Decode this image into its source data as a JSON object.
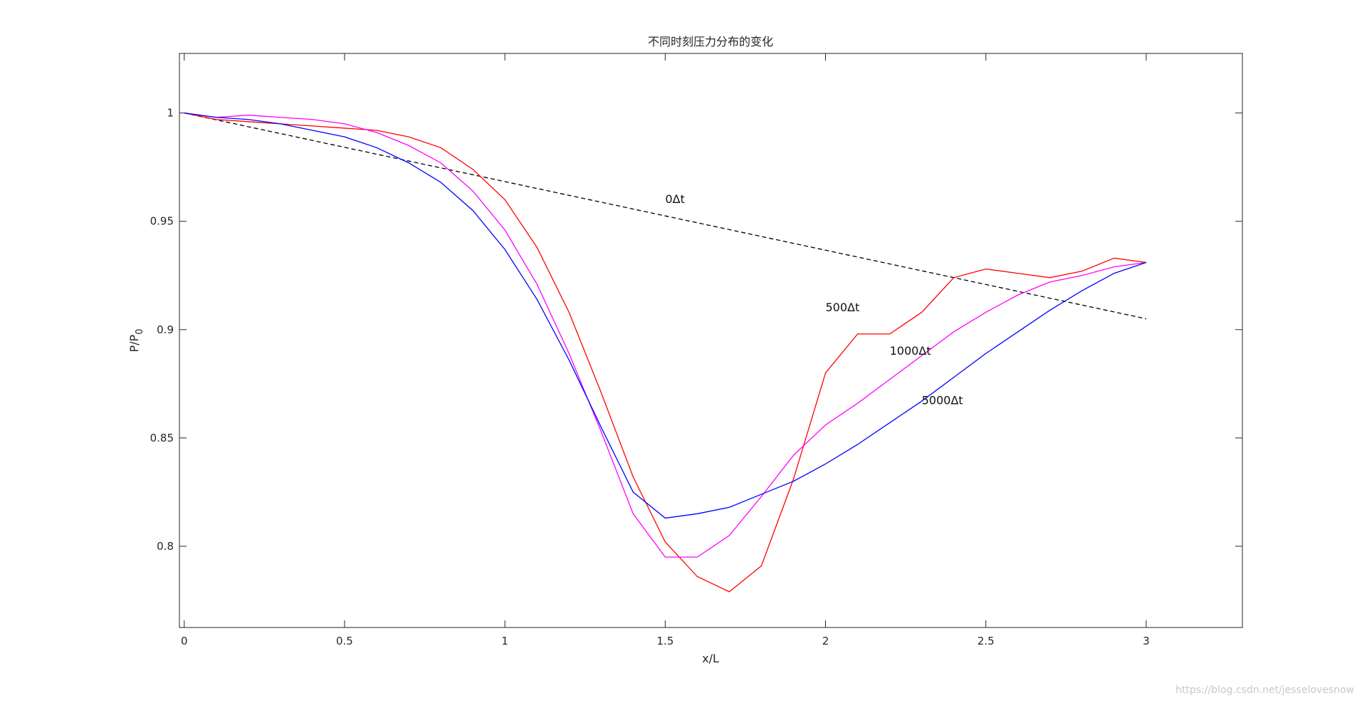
{
  "chart_data": {
    "type": "line",
    "title": "不同时刻压力分布的变化",
    "xlabel": "x/L",
    "ylabel": "P/P",
    "ylabel_subscript": "0",
    "xlim": [
      -0.015,
      3.3
    ],
    "ylim": [
      0.7625,
      1.0275
    ],
    "x_ticks": [
      0,
      0.5,
      1,
      1.5,
      2,
      2.5,
      3
    ],
    "x_tick_labels": [
      "0",
      "0.5",
      "1",
      "1.5",
      "2",
      "2.5",
      "3"
    ],
    "y_ticks": [
      0.8,
      0.85,
      0.9,
      0.95,
      1
    ],
    "y_tick_labels": [
      "0.8",
      "0.85",
      "0.9",
      "0.95",
      "1"
    ],
    "grid": false,
    "series": [
      {
        "id": "t0",
        "color": "#000000",
        "dashed": true,
        "x": [
          0,
          3
        ],
        "y": [
          1.0,
          0.905
        ]
      },
      {
        "id": "t500",
        "color": "#ff0000",
        "dashed": false,
        "x": [
          0,
          0.1,
          0.2,
          0.3,
          0.4,
          0.5,
          0.6,
          0.7,
          0.8,
          0.9,
          1.0,
          1.1,
          1.2,
          1.3,
          1.4,
          1.5,
          1.6,
          1.7,
          1.8,
          1.9,
          2.0,
          2.1,
          2.2,
          2.3,
          2.4,
          2.5,
          2.6,
          2.7,
          2.8,
          2.9,
          3.0
        ],
        "y": [
          1.0,
          0.997,
          0.996,
          0.995,
          0.994,
          0.993,
          0.992,
          0.989,
          0.984,
          0.974,
          0.96,
          0.938,
          0.908,
          0.871,
          0.832,
          0.802,
          0.786,
          0.779,
          0.791,
          0.831,
          0.88,
          0.898,
          0.898,
          0.908,
          0.924,
          0.928,
          0.926,
          0.924,
          0.927,
          0.933,
          0.931
        ]
      },
      {
        "id": "t1000",
        "color": "#ff00ff",
        "dashed": false,
        "x": [
          0,
          0.1,
          0.2,
          0.3,
          0.4,
          0.5,
          0.6,
          0.7,
          0.8,
          0.9,
          1.0,
          1.1,
          1.2,
          1.3,
          1.4,
          1.5,
          1.6,
          1.7,
          1.8,
          1.9,
          2.0,
          2.1,
          2.2,
          2.3,
          2.4,
          2.5,
          2.6,
          2.7,
          2.8,
          2.9,
          3.0
        ],
        "y": [
          1.0,
          0.998,
          0.999,
          0.998,
          0.997,
          0.995,
          0.991,
          0.985,
          0.977,
          0.964,
          0.946,
          0.921,
          0.889,
          0.853,
          0.815,
          0.795,
          0.795,
          0.805,
          0.823,
          0.842,
          0.856,
          0.866,
          0.877,
          0.888,
          0.899,
          0.908,
          0.916,
          0.922,
          0.925,
          0.929,
          0.931
        ]
      },
      {
        "id": "t5000",
        "color": "#0000ff",
        "dashed": false,
        "x": [
          0,
          0.1,
          0.2,
          0.3,
          0.4,
          0.5,
          0.6,
          0.7,
          0.8,
          0.9,
          1.0,
          1.1,
          1.2,
          1.3,
          1.4,
          1.5,
          1.6,
          1.7,
          1.8,
          1.9,
          2.0,
          2.1,
          2.2,
          2.3,
          2.4,
          2.5,
          2.6,
          2.7,
          2.8,
          2.9,
          3.0
        ],
        "y": [
          1.0,
          0.998,
          0.997,
          0.995,
          0.992,
          0.989,
          0.984,
          0.977,
          0.968,
          0.955,
          0.937,
          0.914,
          0.886,
          0.855,
          0.825,
          0.813,
          0.815,
          0.818,
          0.824,
          0.83,
          0.838,
          0.847,
          0.857,
          0.867,
          0.878,
          0.889,
          0.899,
          0.909,
          0.918,
          0.926,
          0.931
        ]
      }
    ],
    "annotations": [
      {
        "text": "0Δt",
        "x": 1.5,
        "y": 0.9585
      },
      {
        "text": "500Δt",
        "x": 2.0,
        "y": 0.9085
      },
      {
        "text": "1000Δt",
        "x": 2.2,
        "y": 0.8885
      },
      {
        "text": "5000Δt",
        "x": 2.3,
        "y": 0.8655
      }
    ]
  },
  "watermark": "https://blog.csdn.net/jesselovesnow"
}
